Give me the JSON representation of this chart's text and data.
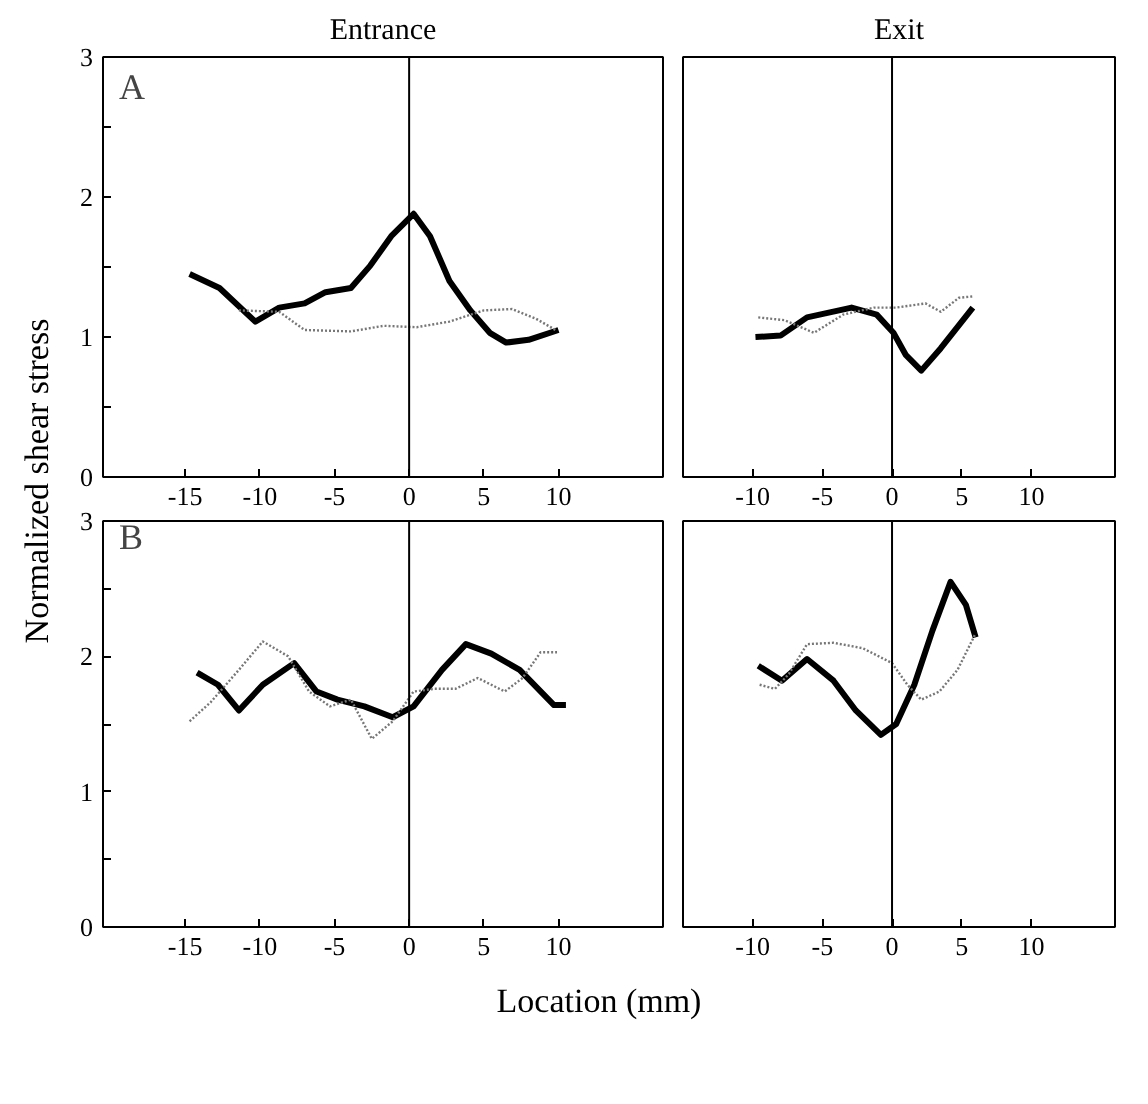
{
  "chart_data": [
    {
      "type": "line",
      "title": "Entrance",
      "ylabel": "Normalized shear stress",
      "annotations": [
        "A"
      ],
      "xlim": [
        -20.5,
        17
      ],
      "xticks": [
        -15,
        -10,
        -5,
        0,
        5,
        10
      ],
      "ylim": [
        0,
        3
      ],
      "yticks": [
        0,
        {
          "value": 0.5,
          "label": null
        },
        1,
        {
          "value": 1.5,
          "label": null
        },
        2,
        {
          "value": 2.5,
          "label": null
        },
        3
      ],
      "grid": false,
      "ref_lines": [
        {
          "axis": "x",
          "value": 0,
          "color": "#000000"
        }
      ],
      "series": [
        {
          "color": "#000000",
          "line_style": "solid",
          "x": [
            -14.7,
            -12.7,
            -10.3,
            -8.7,
            -7,
            -5.6,
            -3.9,
            -2.6,
            -1.2,
            0.3,
            1.4,
            2.7,
            4.1,
            5.4,
            6.5,
            8,
            10
          ],
          "values": [
            1.45,
            1.35,
            1.11,
            1.21,
            1.24,
            1.32,
            1.35,
            1.51,
            1.72,
            1.88,
            1.72,
            1.4,
            1.19,
            1.03,
            0.96,
            0.98,
            1.05
          ]
        },
        {
          "color": "#777777",
          "line_style": "dotted",
          "x": [
            -11.4,
            -8.7,
            -7,
            -3.9,
            -1.7,
            0.5,
            2.7,
            5,
            6.9,
            8.5,
            9.8
          ],
          "values": [
            1.19,
            1.18,
            1.05,
            1.04,
            1.08,
            1.07,
            1.11,
            1.19,
            1.2,
            1.13,
            1.05
          ]
        }
      ]
    },
    {
      "type": "line",
      "title": "Exit",
      "xlim": [
        -15,
        16
      ],
      "xticks": [
        -10,
        -5,
        0,
        5,
        10
      ],
      "ylim": [
        0,
        3
      ],
      "tick_labels": "x",
      "grid": false,
      "ref_lines": [
        {
          "axis": "x",
          "value": 0,
          "color": "#000000"
        }
      ],
      "series": [
        {
          "color": "#000000",
          "line_style": "solid",
          "x": [
            -9.8,
            -8,
            -6.1,
            -2.9,
            -1.1,
            0.1,
            1,
            2.1,
            3.5,
            5.8
          ],
          "values": [
            1.0,
            1.01,
            1.14,
            1.21,
            1.16,
            1.03,
            0.87,
            0.76,
            0.92,
            1.21
          ]
        },
        {
          "color": "#777777",
          "line_style": "dotted",
          "x": [
            -9.6,
            -7.7,
            -5.6,
            -3.5,
            -1.3,
            0.3,
            2.4,
            3.5,
            4.8,
            5.8
          ],
          "values": [
            1.14,
            1.12,
            1.03,
            1.16,
            1.21,
            1.21,
            1.24,
            1.18,
            1.28,
            1.29
          ]
        }
      ]
    },
    {
      "type": "line",
      "annotations": [
        "B"
      ],
      "xlim": [
        -20.5,
        17
      ],
      "xticks": [
        -15,
        -10,
        -5,
        0,
        5,
        10
      ],
      "ylim": [
        0,
        3
      ],
      "yticks": [
        0,
        {
          "value": 0.5,
          "label": null
        },
        1,
        {
          "value": 1.5,
          "label": null
        },
        2,
        {
          "value": 2.5,
          "label": null
        },
        3
      ],
      "grid": false,
      "ref_lines": [
        {
          "axis": "x",
          "value": 0,
          "color": "#000000"
        }
      ],
      "series": [
        {
          "color": "#000000",
          "line_style": "solid",
          "x": [
            -14.2,
            -12.8,
            -11.4,
            -9.8,
            -7.7,
            -6.2,
            -4.8,
            -3,
            -1.1,
            0.3,
            2.2,
            3.8,
            5.5,
            7.4,
            9.7,
            10.5
          ],
          "values": [
            1.88,
            1.79,
            1.6,
            1.79,
            1.95,
            1.74,
            1.68,
            1.63,
            1.55,
            1.63,
            1.9,
            2.09,
            2.02,
            1.9,
            1.64,
            1.64
          ]
        },
        {
          "color": "#777777",
          "line_style": "dotted",
          "x": [
            -14.7,
            -13.3,
            -11.4,
            -9.8,
            -8.1,
            -6.7,
            -5.3,
            -3.9,
            -2.5,
            -1.1,
            0.3,
            1.7,
            3.1,
            4.6,
            6.4,
            7.6,
            8.8,
            9.9
          ],
          "values": [
            1.52,
            1.66,
            1.9,
            2.11,
            2.0,
            1.74,
            1.63,
            1.68,
            1.39,
            1.52,
            1.74,
            1.76,
            1.76,
            1.84,
            1.74,
            1.84,
            2.03,
            2.03
          ]
        }
      ]
    },
    {
      "type": "line",
      "xlabel": "Location (mm)",
      "xlim": [
        -15,
        16
      ],
      "xticks": [
        -10,
        -5,
        0,
        5,
        10
      ],
      "ylim": [
        0,
        3
      ],
      "tick_labels": "x",
      "grid": false,
      "ref_lines": [
        {
          "axis": "x",
          "value": 0,
          "color": "#000000"
        }
      ],
      "series": [
        {
          "color": "#000000",
          "line_style": "solid",
          "x": [
            -9.6,
            -7.9,
            -6.1,
            -4.2,
            -2.6,
            -0.8,
            0.3,
            1.6,
            2.9,
            4.2,
            5.3,
            6
          ],
          "values": [
            1.93,
            1.82,
            1.98,
            1.82,
            1.6,
            1.42,
            1.5,
            1.79,
            2.19,
            2.55,
            2.38,
            2.14
          ]
        },
        {
          "color": "#777777",
          "line_style": "dotted",
          "x": [
            -9.5,
            -8.4,
            -7.4,
            -6.1,
            -4.2,
            -2.1,
            0,
            1.1,
            2.1,
            3.4,
            4.7,
            6
          ],
          "values": [
            1.79,
            1.76,
            1.87,
            2.09,
            2.1,
            2.06,
            1.95,
            1.79,
            1.68,
            1.74,
            1.9,
            2.17
          ]
        }
      ]
    }
  ]
}
